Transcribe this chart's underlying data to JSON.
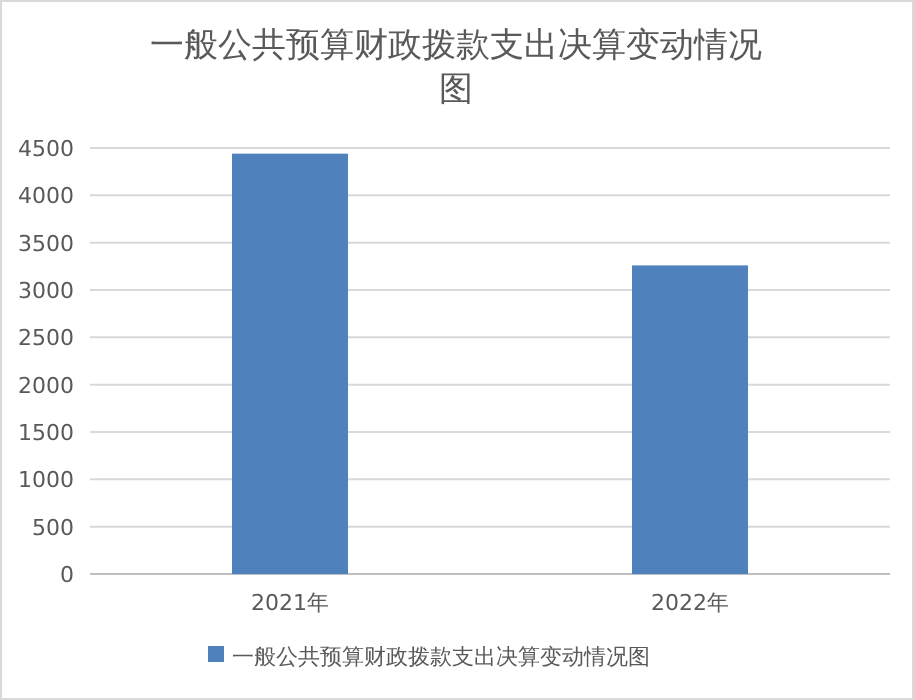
{
  "chart_data": {
    "type": "bar",
    "title": "一般公共预算财政拨款支出决算变动情况图",
    "categories": [
      "2021年",
      "2022年"
    ],
    "series": [
      {
        "name": "一般公共预算财政拨款支出决算变动情况图",
        "color": "#4f81bd",
        "values": [
          4440,
          3260
        ]
      }
    ],
    "ylim": [
      0,
      4500
    ],
    "yticks": [
      0,
      500,
      1000,
      1500,
      2000,
      2500,
      3000,
      3500,
      4000,
      4500
    ],
    "grid": "y",
    "legend": "bottom"
  }
}
